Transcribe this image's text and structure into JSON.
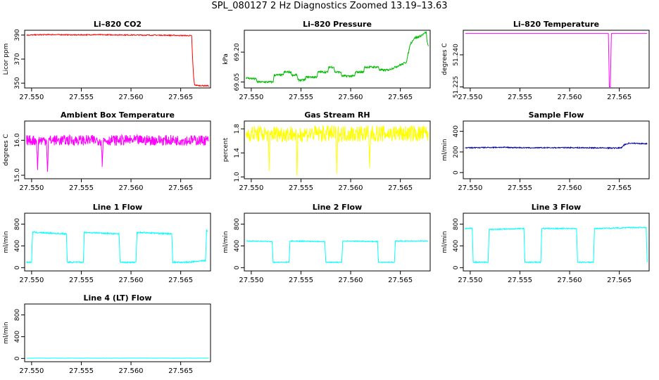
{
  "title": "SPL_080127  2 Hz Diagnostics Zoomed 13.19–13.63",
  "x_ticks": [
    "27.550",
    "27.555",
    "27.560",
    "27.565"
  ],
  "chart_data": [
    {
      "type": "line",
      "title": "Li–820 CO2",
      "ylabel": "Licor ppm",
      "color": "#ff0000",
      "xlim": [
        27.5493,
        27.568
      ],
      "ylim": [
        346,
        394
      ],
      "yticks": [
        "350",
        "370",
        "390"
      ],
      "ytick_values": [
        350,
        370,
        390
      ],
      "noise": 0.4,
      "series": [
        {
          "name": "CO2",
          "x": [
            27.5495,
            27.552,
            27.5545,
            27.5563,
            27.564,
            27.5661,
            27.5662,
            27.5663,
            27.5664,
            27.5668,
            27.5678
          ],
          "y": [
            390.0,
            390.4,
            390.1,
            390.3,
            389.8,
            389.5,
            370.0,
            355.0,
            348.5,
            348.0,
            347.8
          ]
        }
      ]
    },
    {
      "type": "line",
      "title": "Li–820 Pressure",
      "ylabel": "kPa",
      "color": "#00bb00",
      "xlim": [
        27.5493,
        27.568
      ],
      "ylim": [
        69.02,
        69.31
      ],
      "yticks": [
        "69.05",
        "69.20"
      ],
      "ytick_values": [
        69.05,
        69.2
      ],
      "noise": 0.005,
      "series": [
        {
          "name": "Pressure",
          "x": [
            27.5495,
            27.5505,
            27.5506,
            27.5522,
            27.5523,
            27.5532,
            27.5533,
            27.554,
            27.5541,
            27.5546,
            27.5547,
            27.5554,
            27.5555,
            27.5566,
            27.5567,
            27.5577,
            27.5578,
            27.5583,
            27.5584,
            27.559,
            27.5591,
            27.5604,
            27.5605,
            27.5613,
            27.5614,
            27.5628,
            27.5629,
            27.5637,
            27.5638,
            27.5652,
            27.5656,
            27.566,
            27.5664,
            27.567,
            27.5676,
            27.5677,
            27.5678
          ],
          "y": [
            69.07,
            69.065,
            69.05,
            69.05,
            69.085,
            69.085,
            69.1,
            69.1,
            69.085,
            69.085,
            69.06,
            69.06,
            69.075,
            69.075,
            69.1,
            69.1,
            69.125,
            69.125,
            69.1,
            69.1,
            69.08,
            69.08,
            69.1,
            69.1,
            69.125,
            69.125,
            69.11,
            69.11,
            69.11,
            69.14,
            69.15,
            69.24,
            69.27,
            69.28,
            69.3,
            69.25,
            69.23
          ]
        }
      ]
    },
    {
      "type": "line",
      "title": "Li–820 Temperature",
      "ylabel": "degrees C",
      "color": "#ff00ff",
      "xlim": [
        27.5493,
        27.568
      ],
      "ylim": [
        51.2245,
        51.2515
      ],
      "yticks": [
        "51.225",
        "51.240"
      ],
      "ytick_values": [
        51.225,
        51.24
      ],
      "noise": 0,
      "series": [
        {
          "name": "Temperature",
          "x": [
            27.5495,
            27.5639,
            27.564,
            27.5641,
            27.5642,
            27.5678
          ],
          "y": [
            51.25,
            51.25,
            51.225,
            51.225,
            51.25,
            51.25
          ]
        }
      ]
    },
    {
      "type": "line",
      "title": "Ambient Box Temperature",
      "ylabel": "degrees C",
      "color": "#ff00ff",
      "xlim": [
        27.5493,
        27.568
      ],
      "ylim": [
        14.9,
        16.55
      ],
      "yticks": [
        "15.0",
        "16.0"
      ],
      "ytick_values": [
        15.0,
        16.0
      ],
      "noise": 0.15,
      "series": [
        {
          "name": "Ambient Box Temperature",
          "x": [
            27.5495,
            27.5505,
            27.5506,
            27.5507,
            27.5515,
            27.5516,
            27.5517,
            27.553,
            27.557,
            27.5571,
            27.5572,
            27.56,
            27.564,
            27.5678
          ],
          "y": [
            16.0,
            16.0,
            15.15,
            16.0,
            16.0,
            15.1,
            16.0,
            16.0,
            16.0,
            15.35,
            16.0,
            16.0,
            16.0,
            16.0
          ]
        }
      ]
    },
    {
      "type": "line",
      "title": "Gas Stream RH",
      "ylabel": "percent",
      "color": "#ffff00",
      "xlim": [
        27.5493,
        27.568
      ],
      "ylim": [
        0.97,
        1.93
      ],
      "yticks": [
        "1.0",
        "1.4",
        "1.8"
      ],
      "ytick_values": [
        1.0,
        1.4,
        1.8
      ],
      "noise": 0.14,
      "series": [
        {
          "name": "RH",
          "x": [
            27.5495,
            27.5517,
            27.5518,
            27.5519,
            27.5545,
            27.5546,
            27.5547,
            27.5585,
            27.5586,
            27.5587,
            27.5618,
            27.5619,
            27.562,
            27.5678
          ],
          "y": [
            1.72,
            1.72,
            1.1,
            1.72,
            1.72,
            1.02,
            1.72,
            1.72,
            1.05,
            1.72,
            1.72,
            1.15,
            1.72,
            1.72
          ]
        }
      ]
    },
    {
      "type": "line",
      "title": "Sample Flow",
      "ylabel": "ml/min",
      "color": "#0000aa",
      "xlim": [
        27.5493,
        27.568
      ],
      "ylim": [
        -60,
        500
      ],
      "yticks": [
        "0",
        "200",
        "400"
      ],
      "ytick_values": [
        0,
        200,
        400
      ],
      "noise": 5,
      "series": [
        {
          "name": "Sample Flow",
          "x": [
            27.5495,
            27.553,
            27.556,
            27.56,
            27.5645,
            27.5652,
            27.5655,
            27.566,
            27.5678
          ],
          "y": [
            240,
            245,
            240,
            242,
            238,
            240,
            270,
            285,
            280
          ]
        }
      ]
    },
    {
      "type": "line",
      "title": "Line 1 Flow",
      "ylabel": "ml/min",
      "color": "#00ffff",
      "xlim": [
        27.5493,
        27.568
      ],
      "ylim": [
        -60,
        1000
      ],
      "yticks": [
        "0",
        "400",
        "800"
      ],
      "ytick_values": [
        0,
        400,
        800
      ],
      "noise": 12,
      "series": [
        {
          "name": "Line 1 Flow",
          "x": [
            27.5495,
            27.55,
            27.5501,
            27.5535,
            27.5536,
            27.5552,
            27.5553,
            27.5588,
            27.5589,
            27.5605,
            27.5606,
            27.5641,
            27.5642,
            27.5658,
            27.5675,
            27.5676,
            27.5677
          ],
          "y": [
            100,
            100,
            650,
            620,
            100,
            100,
            650,
            620,
            100,
            100,
            650,
            620,
            100,
            100,
            130,
            680,
            680
          ]
        }
      ]
    },
    {
      "type": "line",
      "title": "Line 2 Flow",
      "ylabel": "ml/min",
      "color": "#00ffff",
      "xlim": [
        27.5493,
        27.568
      ],
      "ylim": [
        -60,
        1000
      ],
      "yticks": [
        "0",
        "400",
        "800"
      ],
      "ytick_values": [
        0,
        400,
        800
      ],
      "noise": 8,
      "series": [
        {
          "name": "Line 2 Flow",
          "x": [
            27.5495,
            27.5521,
            27.5522,
            27.5538,
            27.5539,
            27.5574,
            27.5575,
            27.5591,
            27.5592,
            27.5627,
            27.5628,
            27.5644,
            27.5645,
            27.5678
          ],
          "y": [
            490,
            480,
            100,
            100,
            490,
            480,
            100,
            100,
            490,
            480,
            100,
            100,
            490,
            490
          ]
        }
      ]
    },
    {
      "type": "line",
      "title": "Line 3 Flow",
      "ylabel": "ml/min",
      "color": "#00ffff",
      "xlim": [
        27.5493,
        27.568
      ],
      "ylim": [
        -60,
        1000
      ],
      "yticks": [
        "0",
        "400",
        "800"
      ],
      "ytick_values": [
        0,
        400,
        800
      ],
      "noise": 10,
      "series": [
        {
          "name": "Line 3 Flow",
          "x": [
            27.5495,
            27.5502,
            27.5503,
            27.5518,
            27.5519,
            27.5554,
            27.5555,
            27.5571,
            27.5572,
            27.5607,
            27.5608,
            27.5624,
            27.5625,
            27.5677,
            27.5678
          ],
          "y": [
            720,
            720,
            100,
            100,
            700,
            720,
            100,
            100,
            720,
            720,
            100,
            100,
            720,
            740,
            100
          ]
        }
      ]
    },
    {
      "type": "line",
      "title": "Line 4 (LT) Flow",
      "ylabel": "ml/min",
      "color": "#00ffff",
      "xlim": [
        27.5493,
        27.568
      ],
      "ylim": [
        -60,
        1000
      ],
      "yticks": [
        "0",
        "400",
        "800"
      ],
      "ytick_values": [
        0,
        400,
        800
      ],
      "noise": 2,
      "series": [
        {
          "name": "Line 4 Flow",
          "x": [
            27.5495,
            27.5678
          ],
          "y": [
            5,
            5
          ]
        }
      ]
    }
  ]
}
